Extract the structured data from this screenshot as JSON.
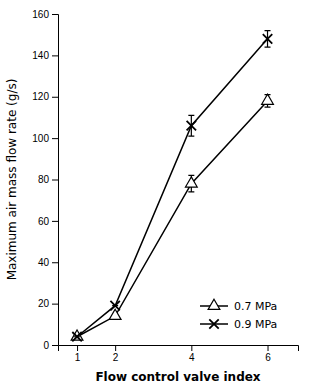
{
  "chart_data": {
    "type": "line",
    "x": [
      1,
      2,
      4,
      6
    ],
    "series": [
      {
        "name": "0.7 MPa",
        "color": "#000000",
        "marker": "triangle",
        "line_style": "solid",
        "values": [
          4,
          14,
          78,
          118
        ],
        "yerr": [
          0,
          0,
          4,
          3
        ]
      },
      {
        "name": "0.9 MPa",
        "color": "#000000",
        "marker": "x",
        "line_style": "solid",
        "values": [
          4,
          19,
          106,
          148
        ],
        "yerr": [
          0,
          0,
          5,
          4
        ]
      }
    ],
    "xlabel": "Flow control valve index",
    "ylabel": "Maximum air mass flow rate (g/s)",
    "xlim": [
      0.5,
      6.8
    ],
    "ylim": [
      0,
      160
    ],
    "xticks": [
      1,
      2,
      4,
      6
    ],
    "yticks": [
      0,
      20,
      40,
      60,
      80,
      100,
      120,
      140,
      160
    ],
    "grid": false,
    "legend": "lower right"
  }
}
